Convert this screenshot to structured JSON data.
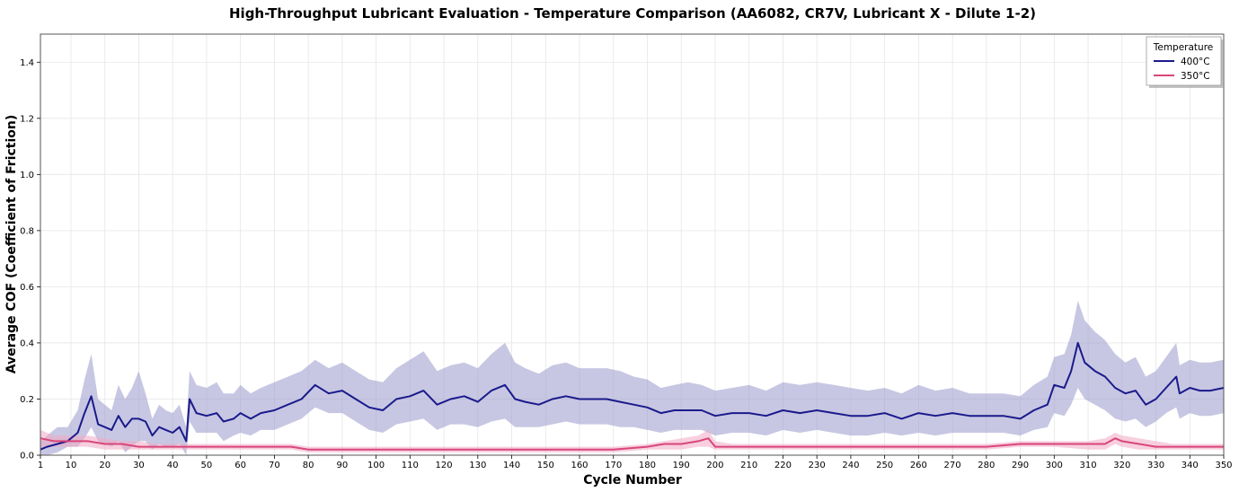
{
  "chart_data": {
    "type": "line",
    "title": "High-Throughput Lubricant Evaluation - Temperature Comparison (AA6082, CR7V, Lubricant X - Dilute 1-2)",
    "xlabel": "Cycle Number",
    "ylabel": "Average COF (Coefficient of Friction)",
    "xlim": [
      1,
      350
    ],
    "ylim": [
      0,
      1.5
    ],
    "x_ticks": [
      1,
      10,
      20,
      30,
      40,
      50,
      60,
      70,
      80,
      90,
      100,
      110,
      120,
      130,
      140,
      150,
      160,
      170,
      180,
      190,
      200,
      210,
      220,
      230,
      240,
      250,
      260,
      270,
      280,
      290,
      300,
      310,
      320,
      330,
      340,
      350
    ],
    "y_ticks": [
      0.0,
      0.2,
      0.4,
      0.6,
      0.8,
      1.0,
      1.2,
      1.4
    ],
    "grid": true,
    "legend": {
      "title": "Temperature",
      "placement": "top-right"
    },
    "series": [
      {
        "name": "400°C",
        "color": "#1a1a8c",
        "band_color": "#9999cc",
        "x": [
          1,
          3,
          6,
          9,
          12,
          14,
          16,
          18,
          20,
          22,
          24,
          26,
          28,
          30,
          32,
          34,
          36,
          38,
          40,
          42,
          44,
          45,
          47,
          50,
          53,
          55,
          58,
          60,
          63,
          66,
          70,
          74,
          78,
          82,
          86,
          90,
          94,
          98,
          102,
          106,
          110,
          114,
          118,
          122,
          126,
          130,
          134,
          138,
          141,
          144,
          148,
          152,
          156,
          160,
          164,
          168,
          172,
          176,
          180,
          184,
          188,
          192,
          196,
          200,
          205,
          210,
          215,
          220,
          225,
          230,
          235,
          240,
          245,
          250,
          255,
          260,
          265,
          270,
          275,
          280,
          285,
          290,
          294,
          298,
          300,
          303,
          305,
          307,
          309,
          312,
          315,
          318,
          321,
          324,
          327,
          330,
          333,
          336,
          337,
          340,
          343,
          346,
          350
        ],
        "y": [
          0.02,
          0.03,
          0.04,
          0.05,
          0.08,
          0.15,
          0.21,
          0.11,
          0.1,
          0.09,
          0.14,
          0.1,
          0.13,
          0.13,
          0.12,
          0.07,
          0.1,
          0.09,
          0.08,
          0.1,
          0.05,
          0.2,
          0.15,
          0.14,
          0.15,
          0.12,
          0.13,
          0.15,
          0.13,
          0.15,
          0.16,
          0.18,
          0.2,
          0.25,
          0.22,
          0.23,
          0.2,
          0.17,
          0.16,
          0.2,
          0.21,
          0.23,
          0.18,
          0.2,
          0.21,
          0.19,
          0.23,
          0.25,
          0.2,
          0.19,
          0.18,
          0.2,
          0.21,
          0.2,
          0.2,
          0.2,
          0.19,
          0.18,
          0.17,
          0.15,
          0.16,
          0.16,
          0.16,
          0.14,
          0.15,
          0.15,
          0.14,
          0.16,
          0.15,
          0.16,
          0.15,
          0.14,
          0.14,
          0.15,
          0.13,
          0.15,
          0.14,
          0.15,
          0.14,
          0.14,
          0.14,
          0.13,
          0.16,
          0.18,
          0.25,
          0.24,
          0.3,
          0.4,
          0.33,
          0.3,
          0.28,
          0.24,
          0.22,
          0.23,
          0.18,
          0.2,
          0.24,
          0.28,
          0.22,
          0.24,
          0.23,
          0.23,
          0.24
        ],
        "lower": [
          0.0,
          0.0,
          0.01,
          0.03,
          0.03,
          0.06,
          0.1,
          0.05,
          0.04,
          0.03,
          0.05,
          0.01,
          0.03,
          0.05,
          0.05,
          0.02,
          0.04,
          0.03,
          0.03,
          0.04,
          0.0,
          0.12,
          0.08,
          0.08,
          0.08,
          0.05,
          0.07,
          0.08,
          0.07,
          0.09,
          0.09,
          0.11,
          0.13,
          0.17,
          0.15,
          0.15,
          0.12,
          0.09,
          0.08,
          0.11,
          0.12,
          0.13,
          0.09,
          0.11,
          0.11,
          0.1,
          0.12,
          0.13,
          0.1,
          0.1,
          0.1,
          0.11,
          0.12,
          0.11,
          0.11,
          0.11,
          0.1,
          0.1,
          0.09,
          0.08,
          0.09,
          0.09,
          0.09,
          0.07,
          0.08,
          0.08,
          0.07,
          0.09,
          0.08,
          0.09,
          0.08,
          0.07,
          0.07,
          0.08,
          0.07,
          0.08,
          0.07,
          0.08,
          0.08,
          0.08,
          0.08,
          0.07,
          0.09,
          0.1,
          0.15,
          0.14,
          0.18,
          0.24,
          0.2,
          0.18,
          0.16,
          0.13,
          0.12,
          0.13,
          0.1,
          0.12,
          0.15,
          0.17,
          0.13,
          0.15,
          0.14,
          0.14,
          0.15
        ],
        "upper": [
          0.05,
          0.07,
          0.1,
          0.1,
          0.16,
          0.27,
          0.36,
          0.2,
          0.18,
          0.16,
          0.25,
          0.2,
          0.24,
          0.3,
          0.22,
          0.13,
          0.18,
          0.16,
          0.15,
          0.18,
          0.1,
          0.3,
          0.25,
          0.24,
          0.26,
          0.22,
          0.22,
          0.25,
          0.22,
          0.24,
          0.26,
          0.28,
          0.3,
          0.34,
          0.31,
          0.33,
          0.3,
          0.27,
          0.26,
          0.31,
          0.34,
          0.37,
          0.3,
          0.32,
          0.33,
          0.31,
          0.36,
          0.4,
          0.33,
          0.31,
          0.29,
          0.32,
          0.33,
          0.31,
          0.31,
          0.31,
          0.3,
          0.28,
          0.27,
          0.24,
          0.25,
          0.26,
          0.25,
          0.23,
          0.24,
          0.25,
          0.23,
          0.26,
          0.25,
          0.26,
          0.25,
          0.24,
          0.23,
          0.24,
          0.22,
          0.25,
          0.23,
          0.24,
          0.22,
          0.22,
          0.22,
          0.21,
          0.25,
          0.28,
          0.35,
          0.36,
          0.43,
          0.55,
          0.48,
          0.44,
          0.41,
          0.36,
          0.33,
          0.35,
          0.28,
          0.3,
          0.35,
          0.4,
          0.32,
          0.34,
          0.33,
          0.33,
          0.34
        ]
      },
      {
        "name": "350°C",
        "color": "#d9467a",
        "band_color": "#f0a8c2",
        "x": [
          1,
          5,
          10,
          15,
          20,
          25,
          30,
          35,
          40,
          45,
          50,
          55,
          60,
          65,
          70,
          75,
          80,
          85,
          90,
          95,
          100,
          110,
          120,
          130,
          140,
          150,
          160,
          170,
          180,
          185,
          190,
          195,
          198,
          200,
          205,
          210,
          220,
          230,
          240,
          250,
          260,
          270,
          280,
          290,
          300,
          310,
          315,
          318,
          320,
          325,
          330,
          335,
          340,
          345,
          350
        ],
        "y": [
          0.06,
          0.05,
          0.05,
          0.05,
          0.04,
          0.04,
          0.03,
          0.03,
          0.03,
          0.03,
          0.03,
          0.03,
          0.03,
          0.03,
          0.03,
          0.03,
          0.02,
          0.02,
          0.02,
          0.02,
          0.02,
          0.02,
          0.02,
          0.02,
          0.02,
          0.02,
          0.02,
          0.02,
          0.03,
          0.04,
          0.04,
          0.05,
          0.06,
          0.03,
          0.03,
          0.03,
          0.03,
          0.03,
          0.03,
          0.03,
          0.03,
          0.03,
          0.03,
          0.04,
          0.04,
          0.04,
          0.04,
          0.06,
          0.05,
          0.04,
          0.03,
          0.03,
          0.03,
          0.03,
          0.03
        ],
        "lower": [
          0.03,
          0.03,
          0.03,
          0.03,
          0.02,
          0.02,
          0.02,
          0.02,
          0.02,
          0.02,
          0.02,
          0.02,
          0.02,
          0.02,
          0.02,
          0.02,
          0.01,
          0.01,
          0.01,
          0.01,
          0.01,
          0.01,
          0.01,
          0.01,
          0.01,
          0.01,
          0.01,
          0.01,
          0.02,
          0.02,
          0.02,
          0.03,
          0.03,
          0.02,
          0.02,
          0.02,
          0.02,
          0.02,
          0.02,
          0.02,
          0.02,
          0.02,
          0.02,
          0.03,
          0.03,
          0.02,
          0.02,
          0.04,
          0.03,
          0.02,
          0.02,
          0.02,
          0.02,
          0.02,
          0.02
        ],
        "upper": [
          0.09,
          0.07,
          0.07,
          0.07,
          0.06,
          0.05,
          0.05,
          0.04,
          0.04,
          0.04,
          0.04,
          0.04,
          0.04,
          0.04,
          0.04,
          0.04,
          0.03,
          0.03,
          0.03,
          0.03,
          0.03,
          0.03,
          0.03,
          0.03,
          0.03,
          0.03,
          0.03,
          0.03,
          0.04,
          0.05,
          0.06,
          0.07,
          0.09,
          0.05,
          0.04,
          0.04,
          0.04,
          0.04,
          0.04,
          0.04,
          0.04,
          0.04,
          0.04,
          0.05,
          0.05,
          0.05,
          0.06,
          0.08,
          0.07,
          0.06,
          0.05,
          0.04,
          0.04,
          0.04,
          0.04
        ]
      }
    ]
  }
}
